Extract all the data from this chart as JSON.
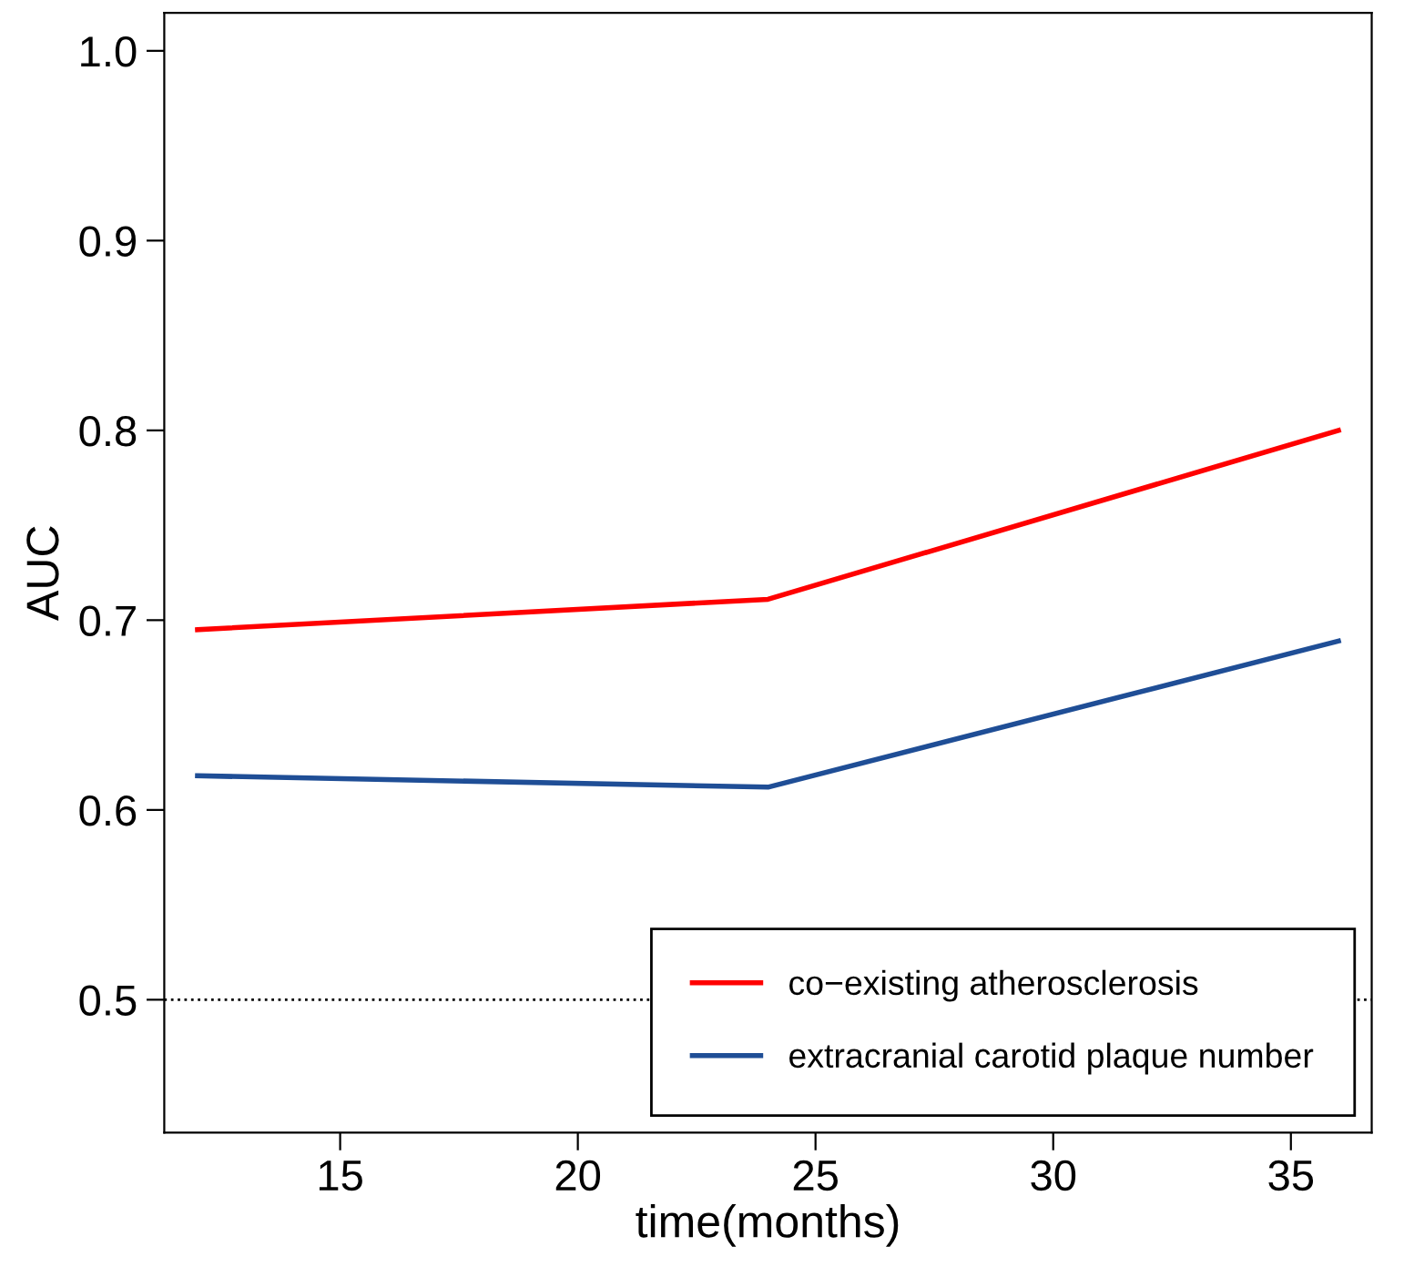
{
  "chart_data": {
    "type": "line",
    "xlabel": "time(months)",
    "ylabel": "AUC",
    "series": [
      {
        "name": "co−existing atherosclerosis",
        "color": "#ff0000",
        "x": [
          12,
          24,
          36
        ],
        "values": [
          0.695,
          0.711,
          0.8
        ]
      },
      {
        "name": "extracranial carotid plaque number",
        "color": "#1f4e96",
        "x": [
          12,
          24,
          36
        ],
        "values": [
          0.618,
          0.612,
          0.689
        ]
      }
    ],
    "xlim": [
      11.3,
      36.7
    ],
    "ylim": [
      0.43,
      1.02
    ],
    "xticks": [
      15,
      20,
      25,
      30,
      35
    ],
    "yticks": [
      {
        "value": 0.5,
        "label": "0.5"
      },
      {
        "value": 0.6,
        "label": "0.6"
      },
      {
        "value": 0.7,
        "label": "0.7"
      },
      {
        "value": 0.8,
        "label": "0.8"
      },
      {
        "value": 0.9,
        "label": "0.9"
      },
      {
        "value": 1.0,
        "label": "1.0"
      }
    ],
    "ref_lines": [
      {
        "axis": "y",
        "value": 0.5,
        "label": null,
        "color": "#000000",
        "line_style": "dotted"
      }
    ],
    "grid": false,
    "legend": "bottom right",
    "marker": "none",
    "line_style": "solid"
  }
}
